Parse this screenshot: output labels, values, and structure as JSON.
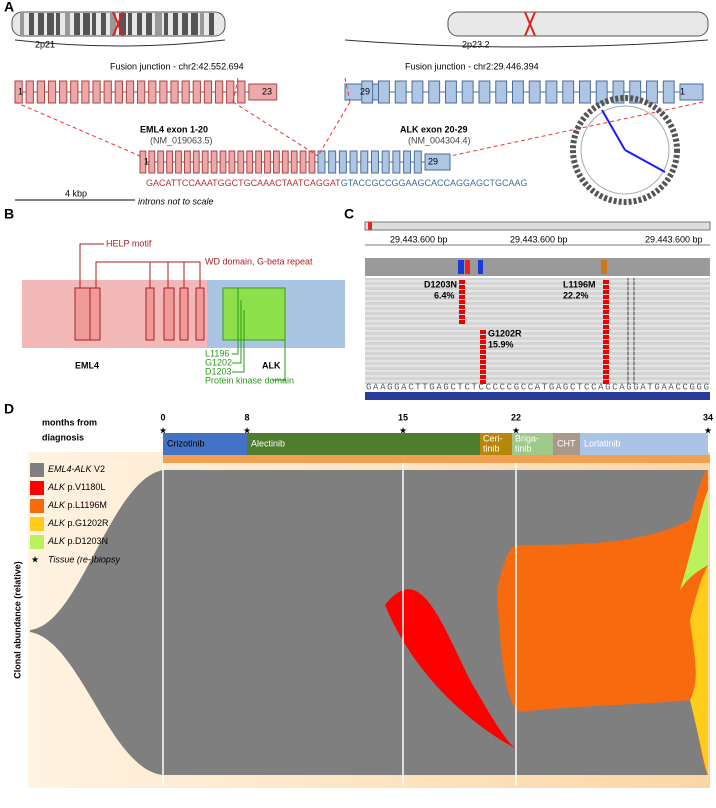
{
  "panel_a": {
    "label": "A",
    "chromosome_bands": [
      "2p21",
      "2p23.2"
    ],
    "junction_left": "Fusion junction - chr2:42.552.694",
    "junction_right": "Fusion junction - chr2:29.446.394",
    "eml4_exons": [
      "1",
      "23"
    ],
    "alk_exons": [
      "29",
      "1"
    ],
    "fusion_exons": [
      "1",
      "29"
    ],
    "eml4_label": "EML4 exon 1-20",
    "eml4_ref": "(NM_019063.5)",
    "alk_label": "ALK exon 20-29",
    "alk_ref": "(NM_004304.4)",
    "sequence_eml4": "GACATTCCAAATGGCTGCAAACTAATCAGGAT",
    "sequence_alk": "GTACCGCCGGAAGCACCAGGAGCTGCAAG",
    "scale": "4 kbp",
    "scale_note": "introns not to scale"
  },
  "panel_b": {
    "label": "B",
    "help_motif": "HELP motif",
    "wd_domain": "WD domain, G-beta repeat",
    "eml4": "EML4",
    "alk": "ALK",
    "residues": [
      "L1196",
      "G1202",
      "D1203"
    ],
    "kinase_domain": "Protein kinase domain"
  },
  "panel_c": {
    "label": "C",
    "positions": [
      "29.443.600 bp",
      "29.443.600 bp",
      "29.443.600 bp"
    ],
    "mutations": [
      {
        "name": "D1203N",
        "freq": "6.4%"
      },
      {
        "name": "L1196M",
        "freq": "22.2%"
      },
      {
        "name": "G1202R",
        "freq": "15.9%"
      }
    ],
    "sequence": "GAAGGACTTGAGCTCTCCCCCGCCATGAGCTCCAGCAGGATGAACCGGG"
  },
  "panel_d": {
    "label": "D",
    "axis_title": [
      "months from",
      "diagnosis"
    ],
    "ticks": [
      0,
      8,
      15,
      22,
      34
    ],
    "treatments": [
      {
        "lines": [
          "Crizotinib"
        ]
      },
      {
        "lines": [
          "Alectinib"
        ]
      },
      {
        "lines": [
          "Ceri-",
          "tinib"
        ]
      },
      {
        "lines": [
          "Briga-",
          "tinib"
        ]
      },
      {
        "lines": [
          "CHT"
        ]
      },
      {
        "lines": [
          "Lorlatinib"
        ]
      }
    ],
    "legend": [
      {
        "gene": "EML4-ALK",
        "variant": "V2",
        "color": "#7f7f7f"
      },
      {
        "gene": "ALK",
        "variant": "p.V1180L",
        "color": "#ff0000"
      },
      {
        "gene": "ALK",
        "variant": "p.L1196M",
        "color": "#f86a0e"
      },
      {
        "gene": "ALK",
        "variant": "p.G1202R",
        "color": "#ffcc1a"
      },
      {
        "gene": "ALK",
        "variant": "p.D1203N",
        "color": "#b9f25d"
      }
    ],
    "biopsy": "Tissue (re-)biopsy",
    "y_title": "Clonal abundance (relative)"
  }
}
